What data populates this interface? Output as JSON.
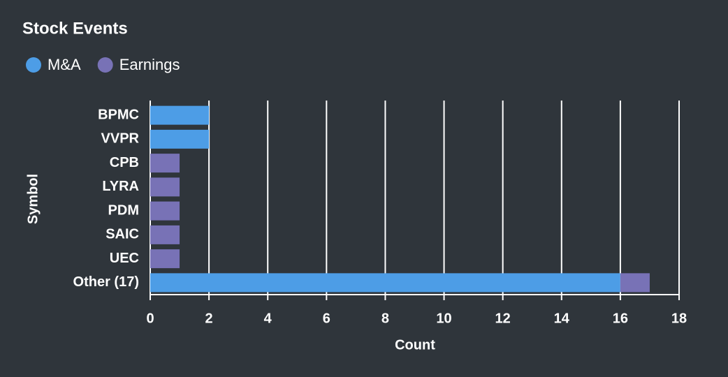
{
  "chart_data": {
    "type": "bar",
    "orientation": "horizontal",
    "stacked": true,
    "title": "Stock Events",
    "categories": [
      "BPMC",
      "VVPR",
      "CPB",
      "LYRA",
      "PDM",
      "SAIC",
      "UEC",
      "Other (17)"
    ],
    "series": [
      {
        "name": "M&A",
        "color": "#4d9de6",
        "values": [
          2,
          2,
          0,
          0,
          0,
          0,
          0,
          16
        ]
      },
      {
        "name": "Earnings",
        "color": "#7872b6",
        "values": [
          0,
          0,
          1,
          1,
          1,
          1,
          1,
          1
        ]
      }
    ],
    "xlabel": "Count",
    "ylabel": "Symbol",
    "xlim": [
      0,
      18
    ],
    "xticks": [
      0,
      2,
      4,
      6,
      8,
      10,
      12,
      14,
      16,
      18
    ],
    "grid": true,
    "legend": "top-left"
  }
}
